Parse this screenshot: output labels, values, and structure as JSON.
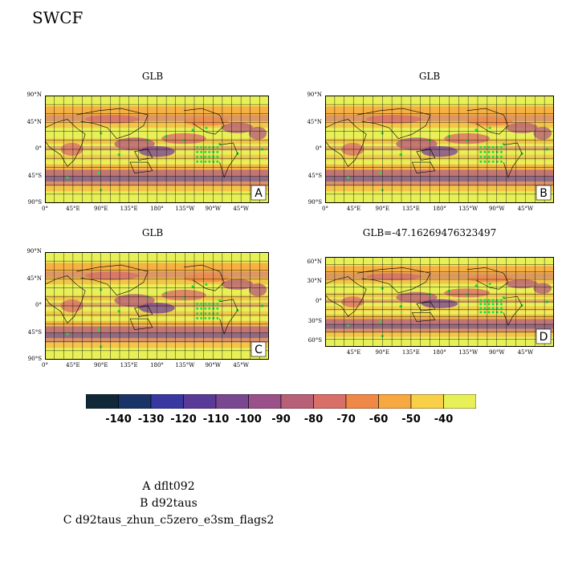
{
  "title": "SWCF",
  "panels": [
    {
      "title": "GLB",
      "letter": "A",
      "lat_labels": [
        "90°N",
        "45°N",
        "0°",
        "45°S",
        "90°S"
      ],
      "lon_labels": [
        "0°",
        "45°E",
        "90°E",
        "135°E",
        "180°",
        "135°W",
        "90°W",
        "45°W"
      ]
    },
    {
      "title": "GLB",
      "letter": "B",
      "lat_labels": [
        "90°N",
        "45°N",
        "0°",
        "45°S",
        "90°S"
      ],
      "lon_labels": [
        "0°",
        "45°E",
        "90°E",
        "135°E",
        "180°",
        "135°W",
        "90°W",
        "45°W"
      ]
    },
    {
      "title": "GLB",
      "letter": "C",
      "lat_labels": [
        "90°N",
        "45°N",
        "0°",
        "45°S",
        "90°S"
      ],
      "lon_labels": [
        "0°",
        "45°E",
        "90°E",
        "135°E",
        "180°",
        "135°W",
        "90°W",
        "45°W"
      ]
    },
    {
      "title": "GLB=-47.16269476323497",
      "letter": "D",
      "lat_labels": [
        "60°N",
        "30°N",
        "0°",
        "30°S",
        "60°S"
      ],
      "lon_labels": [
        "45°E",
        "90°E",
        "135°E",
        "180°",
        "135°W",
        "90°W",
        "45°W"
      ]
    }
  ],
  "colorbar": {
    "labels": [
      "-140",
      "-130",
      "-120",
      "-110",
      "-100",
      "-90",
      "-80",
      "-70",
      "-60",
      "-50",
      "-40"
    ],
    "colors": [
      "#102838",
      "#1a3468",
      "#3838a0",
      "#5a3a98",
      "#7a4890",
      "#9a5088",
      "#b86078",
      "#d87068",
      "#f08848",
      "#f8a840",
      "#f8d048",
      "#e8f058"
    ]
  },
  "legend": {
    "lines": [
      "A  dflt092",
      "B  d92taus",
      "C  d92taus_zhun_c5zero_e3sm_flags2"
    ]
  }
}
